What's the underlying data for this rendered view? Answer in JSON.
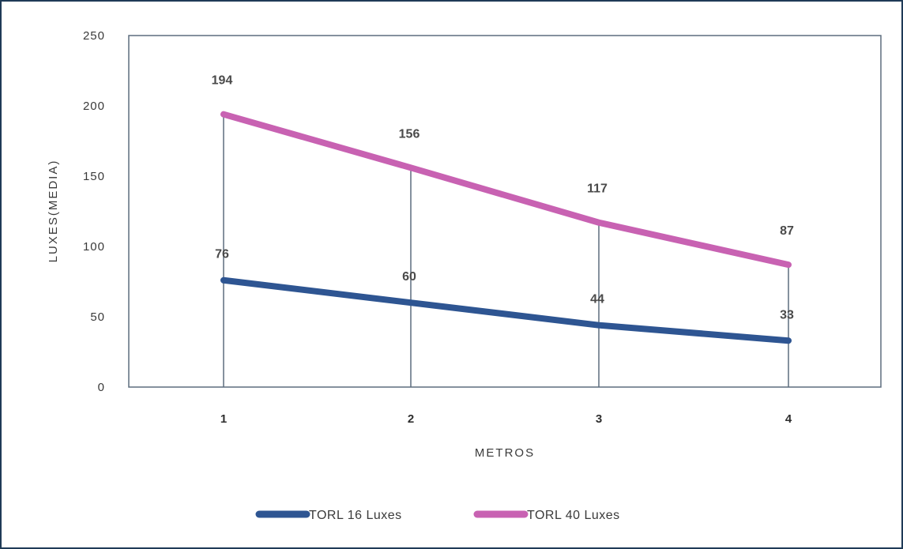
{
  "chart_data": {
    "type": "line",
    "categories": [
      "1",
      "2",
      "3",
      "4"
    ],
    "xlabel": "METROS",
    "ylabel": "LUXES(MEDIA)",
    "ylim": [
      0,
      250
    ],
    "yticks": [
      0,
      50,
      100,
      150,
      200,
      250
    ],
    "grid": false,
    "drop_lines": true,
    "legend_position": "bottom",
    "series": [
      {
        "name": "TORL 16 Luxes",
        "values": [
          76,
          60,
          44,
          33
        ],
        "color": "#2e5592"
      },
      {
        "name": "TORL 40 Luxes",
        "values": [
          194,
          156,
          117,
          87
        ],
        "color": "#c862b2"
      }
    ],
    "plot_border_color": "#5d6d7e"
  }
}
